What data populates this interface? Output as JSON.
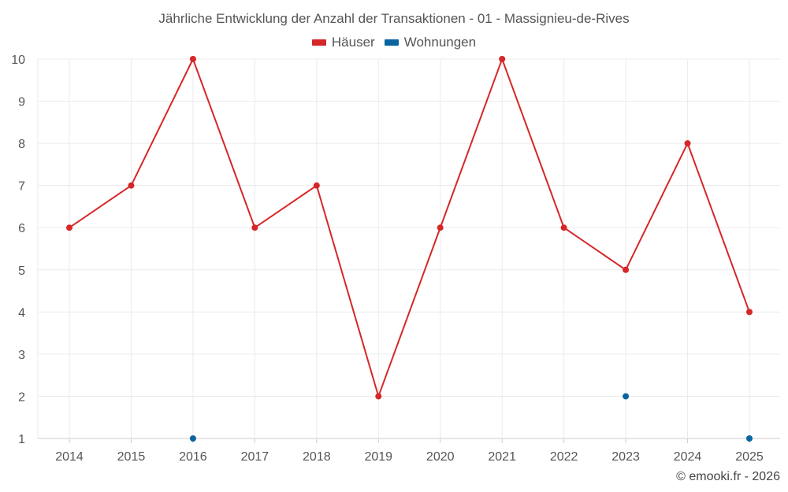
{
  "chart_data": {
    "type": "line",
    "title": "Jährliche Entwicklung der Anzahl der Transaktionen - 01 - Massignieu-de-Rives",
    "xlabel": "",
    "ylabel": "",
    "categories": [
      "2014",
      "2015",
      "2016",
      "2017",
      "2018",
      "2019",
      "2020",
      "2021",
      "2022",
      "2023",
      "2024",
      "2025"
    ],
    "ylim": [
      1,
      10
    ],
    "yticks": [
      "1",
      "2",
      "3",
      "4",
      "5",
      "6",
      "7",
      "8",
      "9",
      "10"
    ],
    "grid": true,
    "legend_position": "top-center",
    "series": [
      {
        "name": "Häuser",
        "color": "#d62728",
        "values": [
          6,
          7,
          10,
          6,
          7,
          2,
          6,
          10,
          6,
          5,
          8,
          4
        ],
        "style": "line"
      },
      {
        "name": "Wohnungen",
        "color": "#0a64a0",
        "values": [
          null,
          null,
          1,
          null,
          null,
          null,
          null,
          null,
          null,
          2,
          null,
          1
        ],
        "style": "points"
      }
    ]
  },
  "watermark": "© emooki.fr - 2026"
}
